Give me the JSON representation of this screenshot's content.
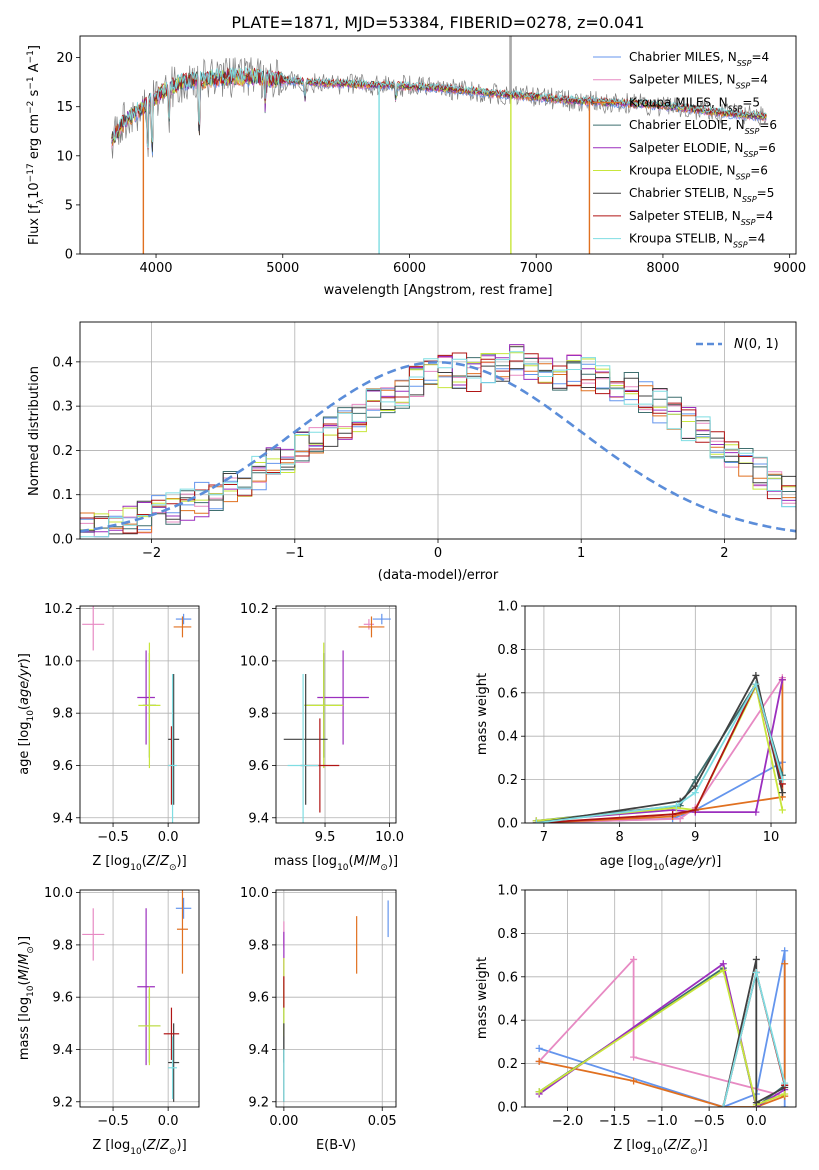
{
  "figure_title": "PLATE=1871, MJD=53384, FIBERID=0278, z=0.041",
  "colors": {
    "chabrier_miles": "#6495ED",
    "salpeter_miles": "#E78AC3",
    "kroupa_miles": "#E07020",
    "chabrier_elodie": "#3F6F6F",
    "salpeter_elodie": "#9B2FBE",
    "kroupa_elodie": "#C8E63C",
    "chabrier_stelib": "#404040",
    "salpeter_stelib": "#B01515",
    "kroupa_stelib": "#7FDDE2",
    "data": "#808080",
    "gaussian": "#5B8DD9"
  },
  "chart_data": [
    {
      "id": "spectrum",
      "type": "line",
      "title": "PLATE=1871, MJD=53384, FIBERID=0278, z=0.041",
      "xlabel": "wavelength [Angstrom, rest frame]",
      "ylabel": "Flux [f_λ 10^-17 erg cm^-2 s^-1 A^-1]",
      "xlim": [
        3400,
        9050
      ],
      "ylim": [
        0,
        22.2
      ],
      "xticks": [
        4000,
        5000,
        6000,
        7000,
        8000,
        9000
      ],
      "yticks": [
        0,
        5,
        10,
        15,
        20
      ],
      "grid": false,
      "legend_position": "top-right",
      "legend": [
        {
          "model": "Chabrier MILES",
          "nssp": "4",
          "color_key": "chabrier_miles"
        },
        {
          "model": "Salpeter MILES",
          "nssp": "4",
          "color_key": "salpeter_miles"
        },
        {
          "model": "Kroupa MILES",
          "nssp": "5",
          "color_key": "kroupa_miles"
        },
        {
          "model": "Chabrier ELODIE",
          "nssp": "6",
          "color_key": "chabrier_elodie"
        },
        {
          "model": "Salpeter ELODIE",
          "nssp": "6",
          "color_key": "salpeter_elodie"
        },
        {
          "model": "Kroupa ELODIE",
          "nssp": "6",
          "color_key": "kroupa_elodie"
        },
        {
          "model": "Chabrier STELIB",
          "nssp": "5",
          "color_key": "chabrier_stelib"
        },
        {
          "model": "Salpeter STELIB",
          "nssp": "4",
          "color_key": "salpeter_stelib"
        },
        {
          "model": "Kroupa STELIB",
          "nssp": "4",
          "color_key": "kroupa_stelib"
        }
      ],
      "continuum": {
        "x": [
          3650,
          3750,
          3850,
          3950,
          4050,
          4200,
          4400,
          4600,
          4800,
          5000,
          5200,
          5500,
          5800,
          6100,
          6400,
          6700,
          7000,
          7300,
          7600,
          7900,
          8200,
          8500,
          8800
        ],
        "y": [
          11.5,
          13.5,
          14.5,
          15.5,
          16.5,
          17.5,
          17.8,
          18.0,
          18.0,
          17.7,
          17.5,
          17.3,
          17.2,
          17.0,
          16.7,
          16.3,
          16.0,
          15.6,
          15.4,
          15.2,
          14.8,
          14.3,
          14.0
        ]
      },
      "absorption_lines": [
        {
          "x": 3934,
          "y": 9.5
        },
        {
          "x": 3969,
          "y": 8.5
        },
        {
          "x": 4102,
          "y": 13.0
        },
        {
          "x": 4340,
          "y": 10.5
        },
        {
          "x": 4861,
          "y": 15.0
        },
        {
          "x": 5175,
          "y": 15.5
        },
        {
          "x": 5893,
          "y": 15.5
        }
      ],
      "masked_regions": [
        {
          "x": 3900,
          "y_bottom": 0
        },
        {
          "x": 5760,
          "y_bottom": 0
        },
        {
          "x": 6800,
          "y_bottom": 0
        },
        {
          "x": 7420,
          "y_bottom": 0
        }
      ]
    },
    {
      "id": "residuals",
      "type": "bar",
      "xlabel": "(data-model)/error",
      "ylabel": "Normed distribution",
      "xlim": [
        -2.5,
        2.5
      ],
      "ylim": [
        0,
        0.49
      ],
      "xticks": [
        -2,
        -1,
        0,
        1,
        2
      ],
      "yticks": [
        0.0,
        0.1,
        0.2,
        0.3,
        0.4
      ],
      "grid": true,
      "legend_position": "top-right",
      "gaussian_label": "N(0,1)",
      "bin_width": 0.1,
      "bin_start": -2.5,
      "envelope": [
        0.02,
        0.02,
        0.03,
        0.04,
        0.05,
        0.06,
        0.07,
        0.08,
        0.09,
        0.1,
        0.12,
        0.13,
        0.15,
        0.17,
        0.19,
        0.21,
        0.22,
        0.24,
        0.26,
        0.28,
        0.3,
        0.31,
        0.33,
        0.35,
        0.37,
        0.38,
        0.38,
        0.37,
        0.38,
        0.39,
        0.4,
        0.39,
        0.38,
        0.37,
        0.38,
        0.37,
        0.36,
        0.35,
        0.34,
        0.32,
        0.3,
        0.28,
        0.26,
        0.24,
        0.21,
        0.19,
        0.17,
        0.15,
        0.13,
        0.11,
        0.1,
        0.09,
        0.08,
        0.07,
        0.06,
        0.06,
        0.05,
        0.05,
        0.04,
        0.04
      ]
    },
    {
      "id": "z_vs_age",
      "type": "scatter",
      "xlabel": "Z [log10(Z/Z⊙)]",
      "ylabel": "age [log10(age/yr)]",
      "xlim": [
        -0.8,
        0.28
      ],
      "ylim": [
        9.38,
        10.21
      ],
      "xticks": [
        -0.5,
        0.0
      ],
      "yticks": [
        9.4,
        9.6,
        9.8,
        10.0,
        10.2
      ],
      "grid": true,
      "points": [
        {
          "c": "chabrier_miles",
          "x": 0.14,
          "y": 10.16,
          "xe": 0.07,
          "ye": 0.02
        },
        {
          "c": "salpeter_miles",
          "x": -0.68,
          "y": 10.14,
          "xe": 0.1,
          "ye": 0.1
        },
        {
          "c": "kroupa_miles",
          "x": 0.13,
          "y": 10.13,
          "xe": 0.08,
          "ye": 0.04
        },
        {
          "c": "chabrier_elodie",
          "x": -0.17,
          "y": 9.83,
          "xe": 0.06,
          "ye": 0.2
        },
        {
          "c": "salpeter_elodie",
          "x": -0.2,
          "y": 9.86,
          "xe": 0.08,
          "ye": 0.18
        },
        {
          "c": "kroupa_elodie",
          "x": -0.17,
          "y": 9.83,
          "xe": 0.1,
          "ye": 0.24
        },
        {
          "c": "chabrier_stelib",
          "x": 0.05,
          "y": 9.7,
          "xe": 0.05,
          "ye": 0.25
        },
        {
          "c": "salpeter_stelib",
          "x": 0.03,
          "y": 9.6,
          "xe": 0.02,
          "ye": 0.15
        },
        {
          "c": "kroupa_stelib",
          "x": 0.04,
          "y": 9.6,
          "xe": 0.04,
          "ye": 0.35
        }
      ]
    },
    {
      "id": "mass_vs_age",
      "type": "scatter",
      "xlabel": "mass [log10(M/M⊙)]",
      "ylabel": "",
      "xlim": [
        9.12,
        10.05
      ],
      "ylim": [
        9.38,
        10.21
      ],
      "xticks": [
        9.5,
        10.0
      ],
      "yticks": [
        9.4,
        9.6,
        9.8,
        10.0,
        10.2
      ],
      "grid": true,
      "points": [
        {
          "c": "chabrier_miles",
          "x": 9.94,
          "y": 10.16,
          "xe": 0.07,
          "ye": 0.02
        },
        {
          "c": "salpeter_miles",
          "x": 9.84,
          "y": 10.14,
          "xe": 0.04,
          "ye": 0.02
        },
        {
          "c": "kroupa_miles",
          "x": 9.86,
          "y": 10.13,
          "xe": 0.1,
          "ye": 0.04
        },
        {
          "c": "chabrier_elodie",
          "x": 9.49,
          "y": 9.83,
          "xe": 0.15,
          "ye": 0.2
        },
        {
          "c": "salpeter_elodie",
          "x": 9.64,
          "y": 9.86,
          "xe": 0.2,
          "ye": 0.18
        },
        {
          "c": "kroupa_elodie",
          "x": 9.49,
          "y": 9.83,
          "xe": 0.15,
          "ye": 0.24
        },
        {
          "c": "chabrier_stelib",
          "x": 9.35,
          "y": 9.7,
          "xe": 0.17,
          "ye": 0.25
        },
        {
          "c": "salpeter_stelib",
          "x": 9.46,
          "y": 9.6,
          "xe": 0.15,
          "ye": 0.18
        },
        {
          "c": "kroupa_stelib",
          "x": 9.33,
          "y": 9.6,
          "xe": 0.12,
          "ye": 0.35
        }
      ]
    },
    {
      "id": "age_vs_weight",
      "type": "line",
      "xlabel": "age [log10(age/yr)]",
      "ylabel": "mass weight",
      "xlim": [
        6.75,
        10.33
      ],
      "ylim": [
        0,
        1.0
      ],
      "xticks": [
        7,
        8,
        9,
        10
      ],
      "yticks": [
        0.0,
        0.2,
        0.4,
        0.6,
        0.8,
        1.0
      ],
      "grid": true,
      "series": [
        {
          "c": "chabrier_miles",
          "x": [
            6.9,
            8.7,
            9.0,
            10.15
          ],
          "y": [
            0.0,
            0.02,
            0.06,
            0.28
          ]
        },
        {
          "c": "salpeter_miles",
          "x": [
            6.9,
            8.8,
            9.0,
            10.15
          ],
          "y": [
            0.0,
            0.02,
            0.07,
            0.67
          ]
        },
        {
          "c": "kroupa_miles",
          "x": [
            6.9,
            8.7,
            9.0,
            10.15,
            10.15
          ],
          "y": [
            0.0,
            0.03,
            0.06,
            0.12,
            0.66
          ]
        },
        {
          "c": "chabrier_elodie",
          "x": [
            6.9,
            8.8,
            9.0,
            9.8,
            10.15
          ],
          "y": [
            0.01,
            0.08,
            0.2,
            0.64,
            0.22
          ]
        },
        {
          "c": "salpeter_elodie",
          "x": [
            6.9,
            8.7,
            9.0,
            9.8,
            10.15
          ],
          "y": [
            0.01,
            0.06,
            0.05,
            0.05,
            0.66
          ]
        },
        {
          "c": "kroupa_elodie",
          "x": [
            6.9,
            8.75,
            9.0,
            9.8,
            10.15
          ],
          "y": [
            0.01,
            0.07,
            0.06,
            0.63,
            0.06
          ]
        },
        {
          "c": "chabrier_stelib",
          "x": [
            6.9,
            8.8,
            9.0,
            9.8,
            10.15
          ],
          "y": [
            0.0,
            0.1,
            0.17,
            0.68,
            0.14
          ]
        },
        {
          "c": "salpeter_stelib",
          "x": [
            6.9,
            8.7,
            9.0,
            9.8,
            10.15
          ],
          "y": [
            0.0,
            0.04,
            0.06,
            0.64,
            0.18
          ]
        },
        {
          "c": "kroupa_stelib",
          "x": [
            6.9,
            8.75,
            9.0,
            9.8,
            10.15
          ],
          "y": [
            0.0,
            0.08,
            0.14,
            0.64,
            0.2
          ]
        }
      ]
    },
    {
      "id": "z_vs_mass",
      "type": "scatter",
      "xlabel": "Z [log10(Z/Z⊙)]",
      "ylabel": "mass [log10(M/M⊙)]",
      "xlim": [
        -0.8,
        0.28
      ],
      "ylim": [
        9.18,
        10.01
      ],
      "xticks": [
        -0.5,
        0.0
      ],
      "yticks": [
        9.2,
        9.4,
        9.6,
        9.8,
        10.0
      ],
      "grid": true,
      "points": [
        {
          "c": "chabrier_miles",
          "x": 0.14,
          "y": 9.94,
          "xe": 0.07,
          "ye": 0.04
        },
        {
          "c": "salpeter_miles",
          "x": -0.68,
          "y": 9.84,
          "xe": 0.1,
          "ye": 0.1
        },
        {
          "c": "kroupa_miles",
          "x": 0.13,
          "y": 9.86,
          "xe": 0.05,
          "ye": 0.17
        },
        {
          "c": "chabrier_elodie",
          "x": -0.17,
          "y": 9.49,
          "xe": 0.1,
          "ye": 0.14
        },
        {
          "c": "salpeter_elodie",
          "x": -0.2,
          "y": 9.64,
          "xe": 0.08,
          "ye": 0.3
        },
        {
          "c": "kroupa_elodie",
          "x": -0.17,
          "y": 9.49,
          "xe": 0.1,
          "ye": 0.15
        },
        {
          "c": "chabrier_stelib",
          "x": 0.05,
          "y": 9.35,
          "xe": 0.05,
          "ye": 0.15
        },
        {
          "c": "salpeter_stelib",
          "x": 0.03,
          "y": 9.46,
          "xe": 0.07,
          "ye": 0.1
        },
        {
          "c": "kroupa_stelib",
          "x": 0.04,
          "y": 9.33,
          "xe": 0.04,
          "ye": 0.12
        }
      ]
    },
    {
      "id": "ebv_vs_mass",
      "type": "scatter",
      "xlabel": "E(B-V)",
      "ylabel": "",
      "xlim": [
        -0.004,
        0.057
      ],
      "ylim": [
        9.18,
        10.01
      ],
      "xticks": [
        0.0,
        0.05
      ],
      "yticks": [
        9.2,
        9.4,
        9.6,
        9.8,
        10.0
      ],
      "grid": true,
      "points": [
        {
          "c": "chabrier_miles",
          "x": 0.053,
          "y": 9.9,
          "xe": 0,
          "ye": 0.07
        },
        {
          "c": "salpeter_miles",
          "x": 0.0,
          "y": 9.84,
          "xe": 0,
          "ye": 0.05
        },
        {
          "c": "kroupa_miles",
          "x": 0.037,
          "y": 9.8,
          "xe": 0,
          "ye": 0.11
        },
        {
          "c": "chabrier_elodie",
          "x": 0.0,
          "y": 9.5,
          "xe": 0,
          "ye": 0.15
        },
        {
          "c": "salpeter_elodie",
          "x": 0.0,
          "y": 9.75,
          "xe": 0,
          "ye": 0.1
        },
        {
          "c": "kroupa_elodie",
          "x": 0.0,
          "y": 9.6,
          "xe": 0,
          "ye": 0.15
        },
        {
          "c": "chabrier_stelib",
          "x": 0.0,
          "y": 9.35,
          "xe": 0,
          "ye": 0.15
        },
        {
          "c": "salpeter_stelib",
          "x": 0.0,
          "y": 9.62,
          "xe": 0,
          "ye": 0.06
        },
        {
          "c": "kroupa_stelib",
          "x": 0.0,
          "y": 9.3,
          "xe": 0,
          "ye": 0.1
        }
      ]
    },
    {
      "id": "z_vs_weight",
      "type": "line",
      "xlabel": "Z [log10(Z/Z⊙)]",
      "ylabel": "mass weight",
      "xlim": [
        -2.45,
        0.42
      ],
      "ylim": [
        0,
        1.0
      ],
      "xticks": [
        -2.0,
        -1.5,
        -1.0,
        -0.5,
        0.0
      ],
      "yticks": [
        0.0,
        0.2,
        0.4,
        0.6,
        0.8,
        1.0
      ],
      "grid": true,
      "series": [
        {
          "c": "chabrier_miles",
          "x": [
            -2.3,
            -0.35,
            0.0,
            0.3,
            0.3
          ],
          "y": [
            0.27,
            0.0,
            0.06,
            0.72,
            0.0
          ]
        },
        {
          "c": "salpeter_miles",
          "x": [
            -2.3,
            -1.3,
            -1.3,
            0.3
          ],
          "y": [
            0.21,
            0.68,
            0.23,
            0.05
          ]
        },
        {
          "c": "kroupa_miles",
          "x": [
            -2.3,
            -1.3,
            -0.35,
            0.0,
            0.3,
            0.3
          ],
          "y": [
            0.21,
            0.12,
            0.0,
            0.0,
            0.05,
            0.66
          ]
        },
        {
          "c": "chabrier_elodie",
          "x": [
            -2.3,
            -0.35,
            0.0,
            0.3
          ],
          "y": [
            0.07,
            0.64,
            0.0,
            0.1
          ]
        },
        {
          "c": "salpeter_elodie",
          "x": [
            -2.3,
            -0.35,
            0.0,
            0.3
          ],
          "y": [
            0.06,
            0.66,
            0.0,
            0.08
          ]
        },
        {
          "c": "kroupa_elodie",
          "x": [
            -2.3,
            -0.35,
            0.0,
            0.3
          ],
          "y": [
            0.07,
            0.63,
            0.01,
            0.06
          ]
        },
        {
          "c": "chabrier_stelib",
          "x": [
            -0.35,
            0.0,
            0.0,
            0.3
          ],
          "y": [
            0.0,
            0.68,
            0.02,
            0.09
          ]
        },
        {
          "c": "salpeter_stelib",
          "x": [
            -0.35,
            0.0,
            0.3
          ],
          "y": [
            0.0,
            0.62,
            0.1
          ]
        },
        {
          "c": "kroupa_stelib",
          "x": [
            -0.35,
            0.0,
            0.3
          ],
          "y": [
            0.0,
            0.62,
            0.11
          ]
        }
      ]
    }
  ]
}
